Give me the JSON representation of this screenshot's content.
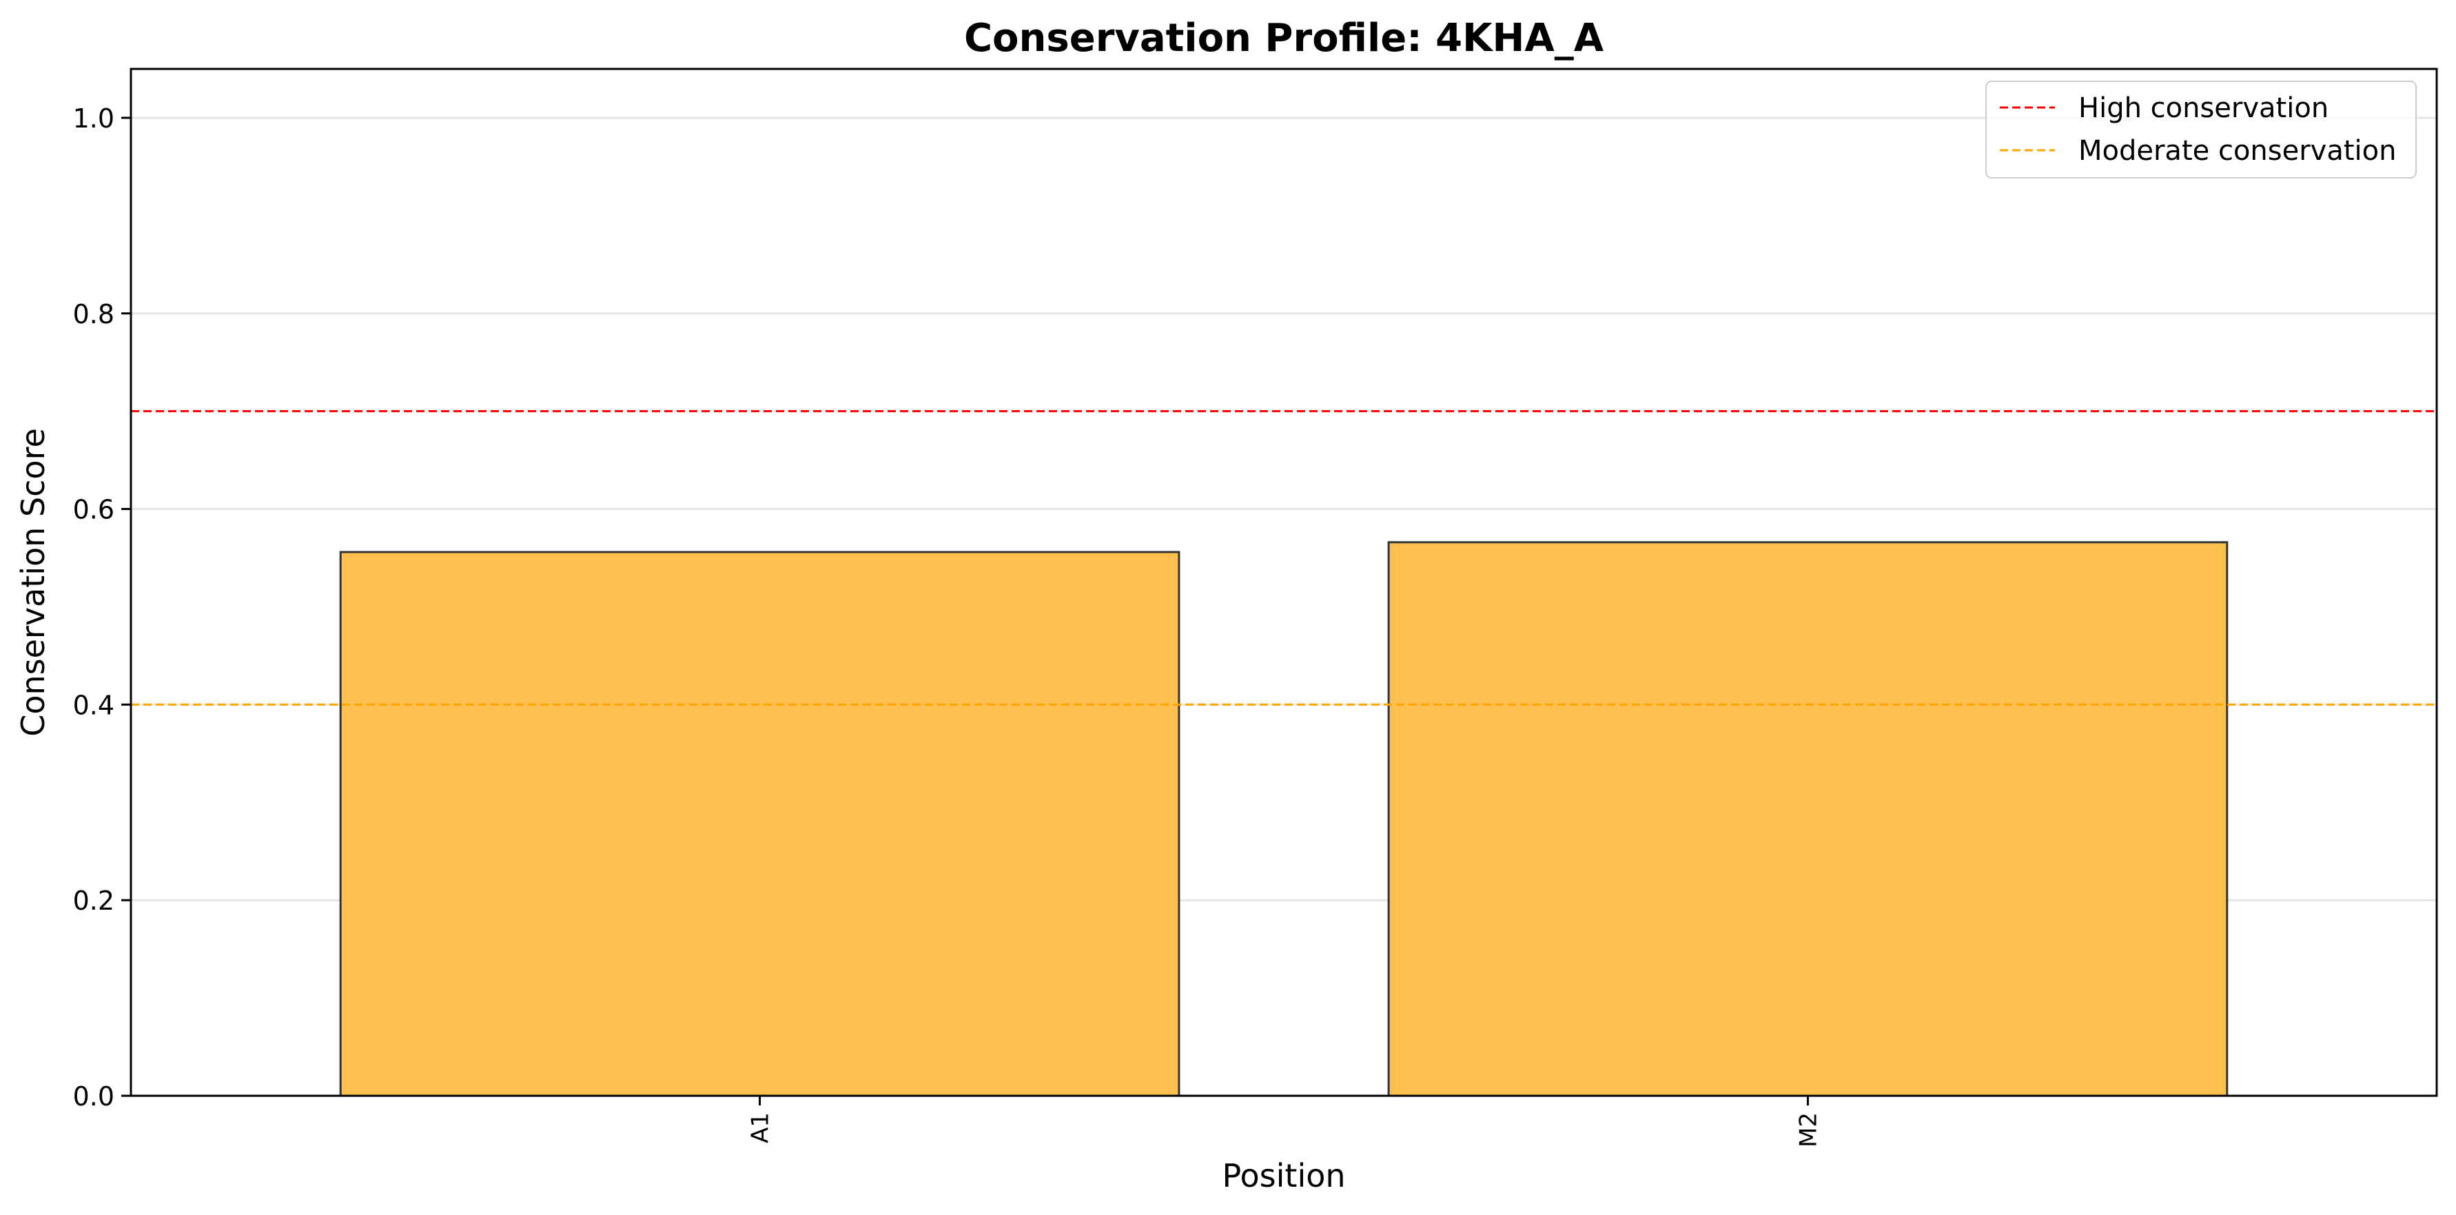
{
  "chart_data": {
    "type": "bar",
    "title": "Conservation Profile: 4KHA_A",
    "xlabel": "Position",
    "ylabel": "Conservation Score",
    "categories": [
      "A1",
      "M2"
    ],
    "values": [
      0.556,
      0.566
    ],
    "ylim": [
      0,
      1.05
    ],
    "yticks": [
      "0.0",
      "0.2",
      "0.4",
      "0.6",
      "0.8",
      "1.0"
    ],
    "grid": "y",
    "bar_color": "#FDBF4F",
    "bar_edge_color": "#333333",
    "reference_lines": [
      {
        "name": "High conservation",
        "value": 0.7,
        "color": "#FF0000",
        "style": "dashed"
      },
      {
        "name": "Moderate conservation",
        "value": 0.4,
        "color": "#FFA500",
        "style": "dashed"
      }
    ],
    "legend_position": "top-right"
  }
}
